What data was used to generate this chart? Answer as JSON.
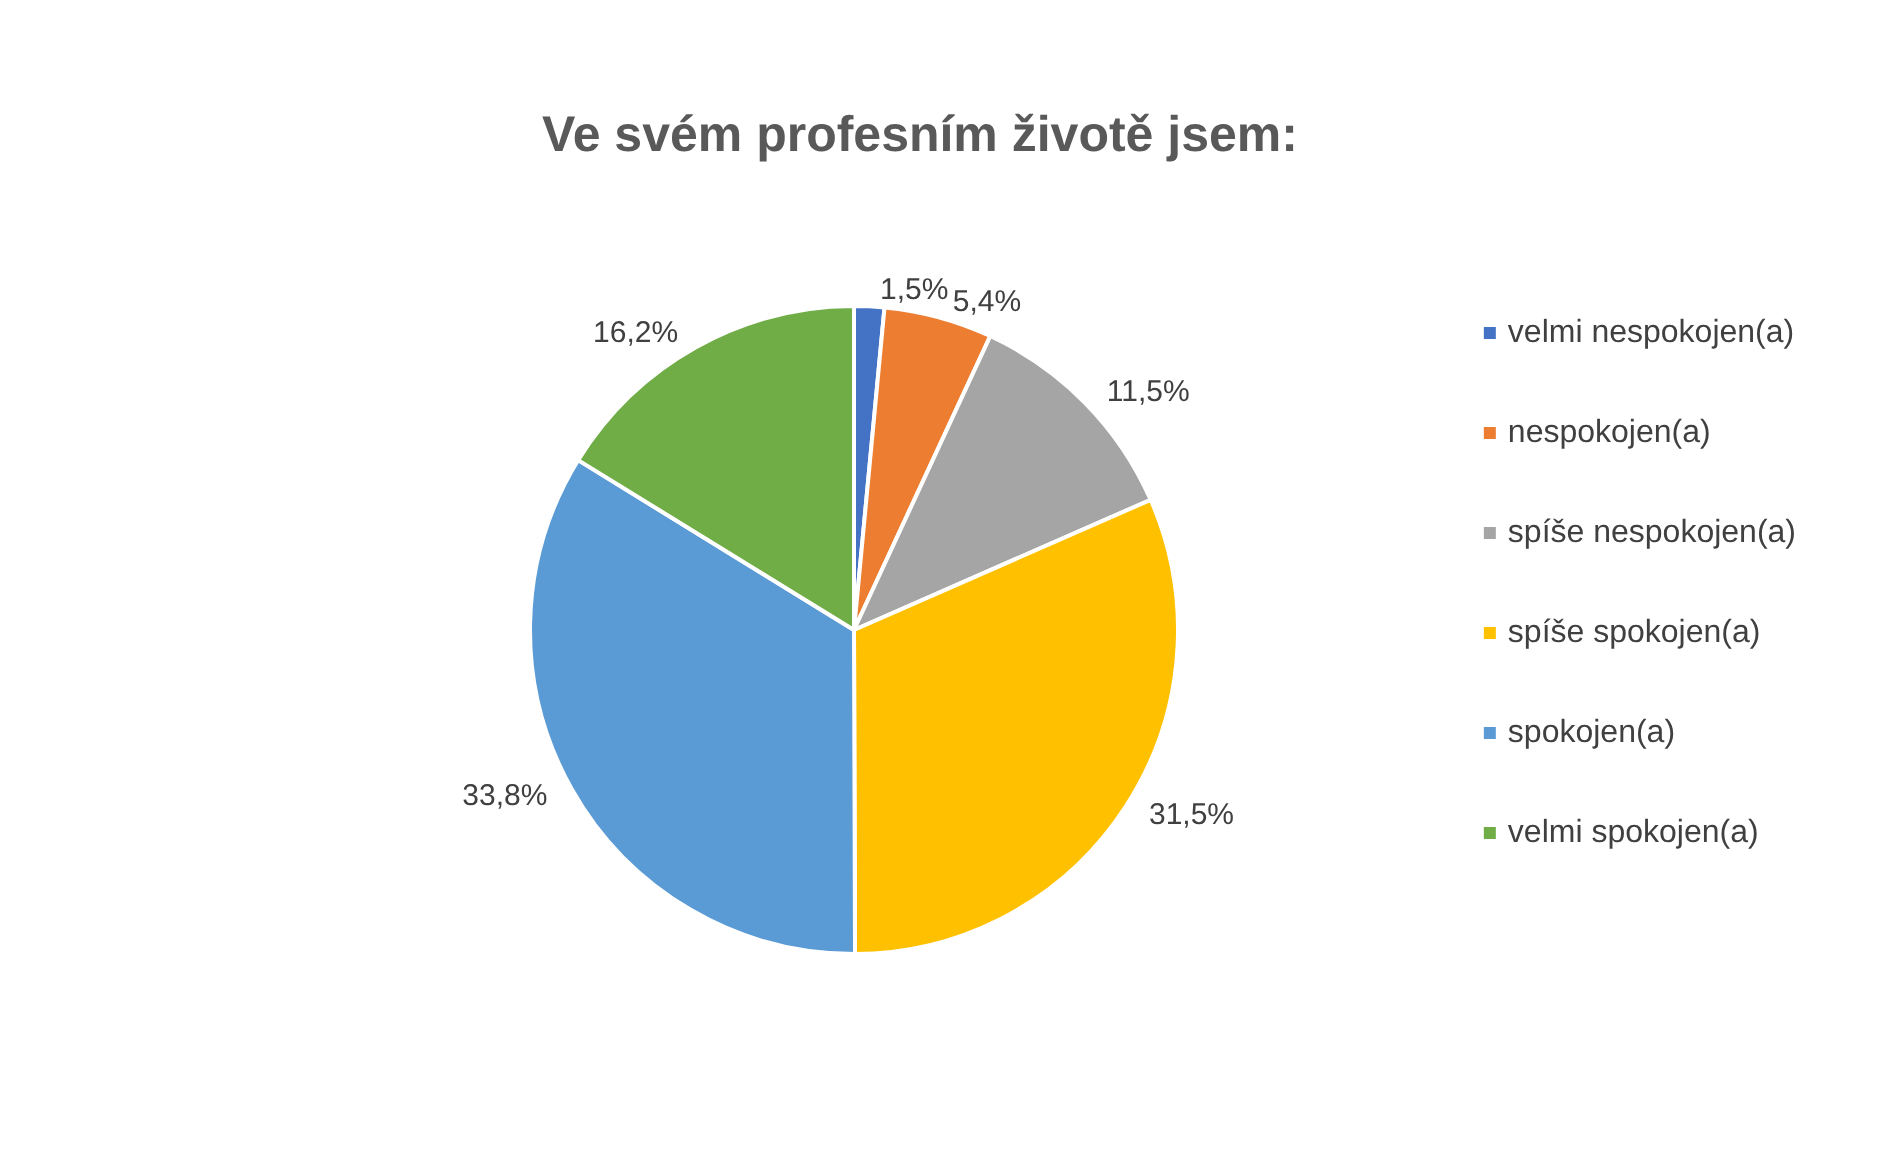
{
  "chart_data": {
    "type": "pie",
    "title": "Ve svém profesním životě jsem:",
    "categories": [
      "velmi nespokojen(a)",
      "nespokojen(a)",
      "spíše nespokojen(a)",
      "spíše spokojen(a)",
      "spokojen(a)",
      "velmi spokojen(a)"
    ],
    "values": [
      1.5,
      5.4,
      11.5,
      31.5,
      33.8,
      16.2
    ],
    "value_labels": [
      "1,5%",
      "5,4%",
      "11,5%",
      "31,5%",
      "33,8%",
      "16,2%"
    ],
    "colors": [
      "#4472c4",
      "#ed7d31",
      "#a5a5a5",
      "#ffc000",
      "#5b9bd5",
      "#70ad47"
    ],
    "legend": "right"
  }
}
